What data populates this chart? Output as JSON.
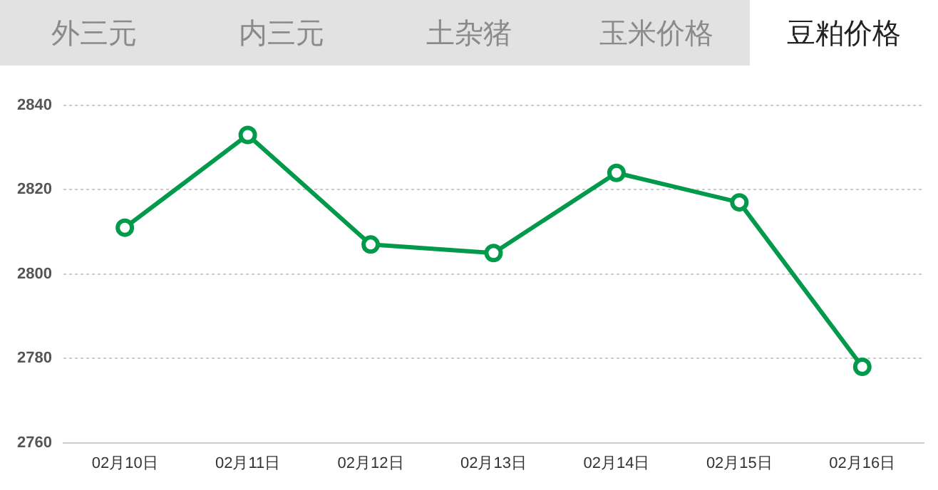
{
  "chart_data": {
    "type": "line",
    "title": "豆粕价格",
    "annotations": [
      "外三元",
      "内三元",
      "土杂猪",
      "玉米价格"
    ],
    "categories": [
      "02月10日",
      "02月11日",
      "02月12日",
      "02月13日",
      "02月14日",
      "02月15日",
      "02月16日"
    ],
    "series": [
      {
        "color": "#009a4a",
        "values": [
          2811,
          2833,
          2807,
          2805,
          2824,
          2817,
          2778
        ]
      }
    ],
    "ylim": [
      2760,
      2840
    ],
    "yticks": [
      2760,
      2780,
      2800,
      2820,
      2840
    ],
    "grid": "y",
    "legend": false,
    "marker": "circle",
    "line_style": "solid"
  }
}
